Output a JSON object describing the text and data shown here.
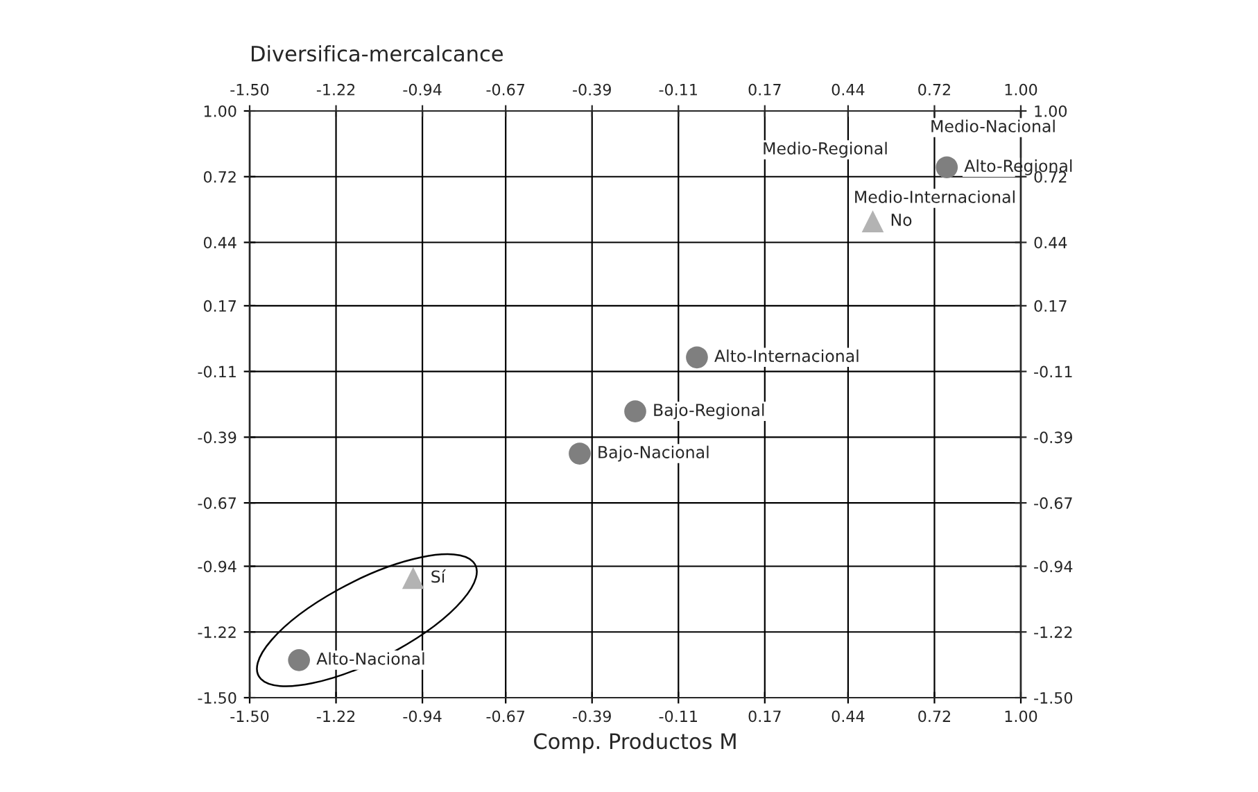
{
  "chart_data": {
    "type": "scatter",
    "xlabel": "Comp. Productos M",
    "ylabel": "Diversifica-mercalcance",
    "series": [
      {
        "marker": "circle",
        "color": "#7f7f7f",
        "x": [
          0.76,
          -0.05,
          -0.25,
          -0.43,
          -1.34
        ],
        "values": [
          0.76,
          -0.05,
          -0.28,
          -0.46,
          -1.34
        ],
        "value_labels": [
          "Alto-Regional",
          "Alto-Internacional",
          "Bajo-Regional",
          "Bajo-Nacional",
          "Alto-Nacional"
        ]
      },
      {
        "marker": "triangle",
        "color": "#b3b3b3",
        "x": [
          0.52,
          -0.97
        ],
        "values": [
          0.53,
          -0.99
        ],
        "value_labels": [
          "No",
          "Sí"
        ]
      }
    ],
    "annotations": [
      "Medio-Regional",
      "Medio-Nacional",
      "Medio-Internacional"
    ],
    "xlim": [
      -1.5,
      1.0
    ],
    "ylim": [
      -1.5,
      1.0
    ],
    "x2lim": [
      -1.5,
      1.0
    ],
    "y2lim": [
      -1.5,
      1.0
    ],
    "xticks": [
      {
        "value": -1.5,
        "label": "-1.50"
      },
      {
        "value": -1.22,
        "label": "-1.22"
      },
      {
        "value": -0.94,
        "label": "-0.94"
      },
      {
        "value": -0.67,
        "label": "-0.67"
      },
      {
        "value": -0.39,
        "label": "-0.39"
      },
      {
        "value": -0.11,
        "label": "-0.11"
      },
      {
        "value": 0.17,
        "label": "0.17"
      },
      {
        "value": 0.44,
        "label": "0.44"
      },
      {
        "value": 0.72,
        "label": "0.72"
      },
      {
        "value": 1.0,
        "label": "1.00"
      }
    ],
    "x2ticks": [
      {
        "value": -1.5,
        "label": "-1.50"
      },
      {
        "value": -1.22,
        "label": "-1.22"
      },
      {
        "value": -0.94,
        "label": "-0.94"
      },
      {
        "value": -0.67,
        "label": "-0.67"
      },
      {
        "value": -0.39,
        "label": "-0.39"
      },
      {
        "value": -0.11,
        "label": "-0.11"
      },
      {
        "value": 0.17,
        "label": "0.17"
      },
      {
        "value": 0.44,
        "label": "0.44"
      },
      {
        "value": 0.72,
        "label": "0.72"
      },
      {
        "value": 1.0,
        "label": "1.00"
      }
    ],
    "yticks": [
      {
        "value": -1.5,
        "label": "-1.50"
      },
      {
        "value": -1.22,
        "label": "-1.22"
      },
      {
        "value": -0.94,
        "label": "-0.94"
      },
      {
        "value": -0.67,
        "label": "-0.67"
      },
      {
        "value": -0.39,
        "label": "-0.39"
      },
      {
        "value": -0.11,
        "label": "-0.11"
      },
      {
        "value": 0.17,
        "label": "0.17"
      },
      {
        "value": 0.44,
        "label": "0.44"
      },
      {
        "value": 0.72,
        "label": "0.72"
      },
      {
        "value": 1.0,
        "label": "1.00"
      }
    ],
    "y2ticks": [
      {
        "value": -1.5,
        "label": "-1.50"
      },
      {
        "value": -1.22,
        "label": "-1.22"
      },
      {
        "value": -0.94,
        "label": "-0.94"
      },
      {
        "value": -0.67,
        "label": "-0.67"
      },
      {
        "value": -0.39,
        "label": "-0.39"
      },
      {
        "value": -0.11,
        "label": "-0.11"
      },
      {
        "value": 0.17,
        "label": "0.17"
      },
      {
        "value": 0.44,
        "label": "0.44"
      },
      {
        "value": 0.72,
        "label": "0.72"
      },
      {
        "value": 1.0,
        "label": "1.00"
      }
    ],
    "grid": true
  }
}
